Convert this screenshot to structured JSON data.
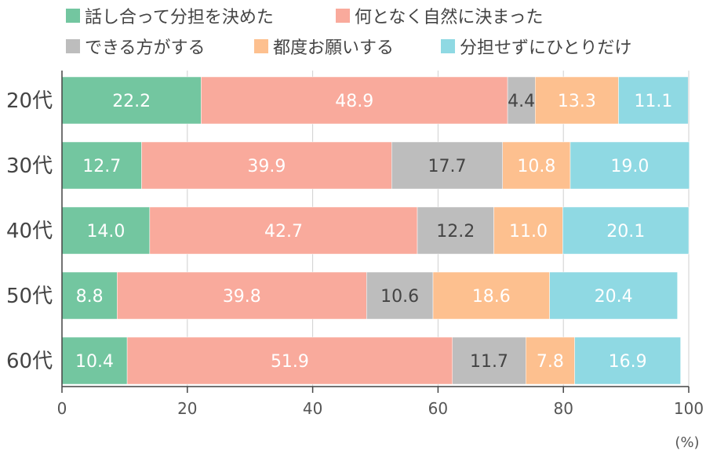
{
  "chart_data": {
    "type": "bar",
    "orientation": "horizontal",
    "stacked": true,
    "categories": [
      "20代",
      "30代",
      "40代",
      "50代",
      "60代"
    ],
    "series": [
      {
        "name": "話し合って分担を決めた",
        "color": "#73c6a0",
        "values": [
          22.2,
          12.7,
          14.0,
          8.8,
          10.4
        ]
      },
      {
        "name": "何となく自然に決まった",
        "color": "#f9aa9c",
        "values": [
          48.9,
          39.9,
          42.7,
          39.8,
          51.9
        ]
      },
      {
        "name": "できる方がする",
        "color": "#bdbdbd",
        "values": [
          4.4,
          17.7,
          12.2,
          10.6,
          11.7
        ]
      },
      {
        "name": "都度お願いする",
        "color": "#fdc08f",
        "values": [
          13.3,
          10.8,
          11.0,
          18.6,
          7.8
        ]
      },
      {
        "name": "分担せずにひとりだけ",
        "color": "#8fd9e3",
        "values": [
          11.1,
          19.0,
          20.1,
          20.4,
          16.9
        ]
      }
    ],
    "xlim": [
      0,
      100
    ],
    "xticks": [
      "0",
      "20",
      "40",
      "60",
      "80",
      "100"
    ],
    "unit_label": "(%)",
    "grid": true,
    "legend_position": "top"
  }
}
